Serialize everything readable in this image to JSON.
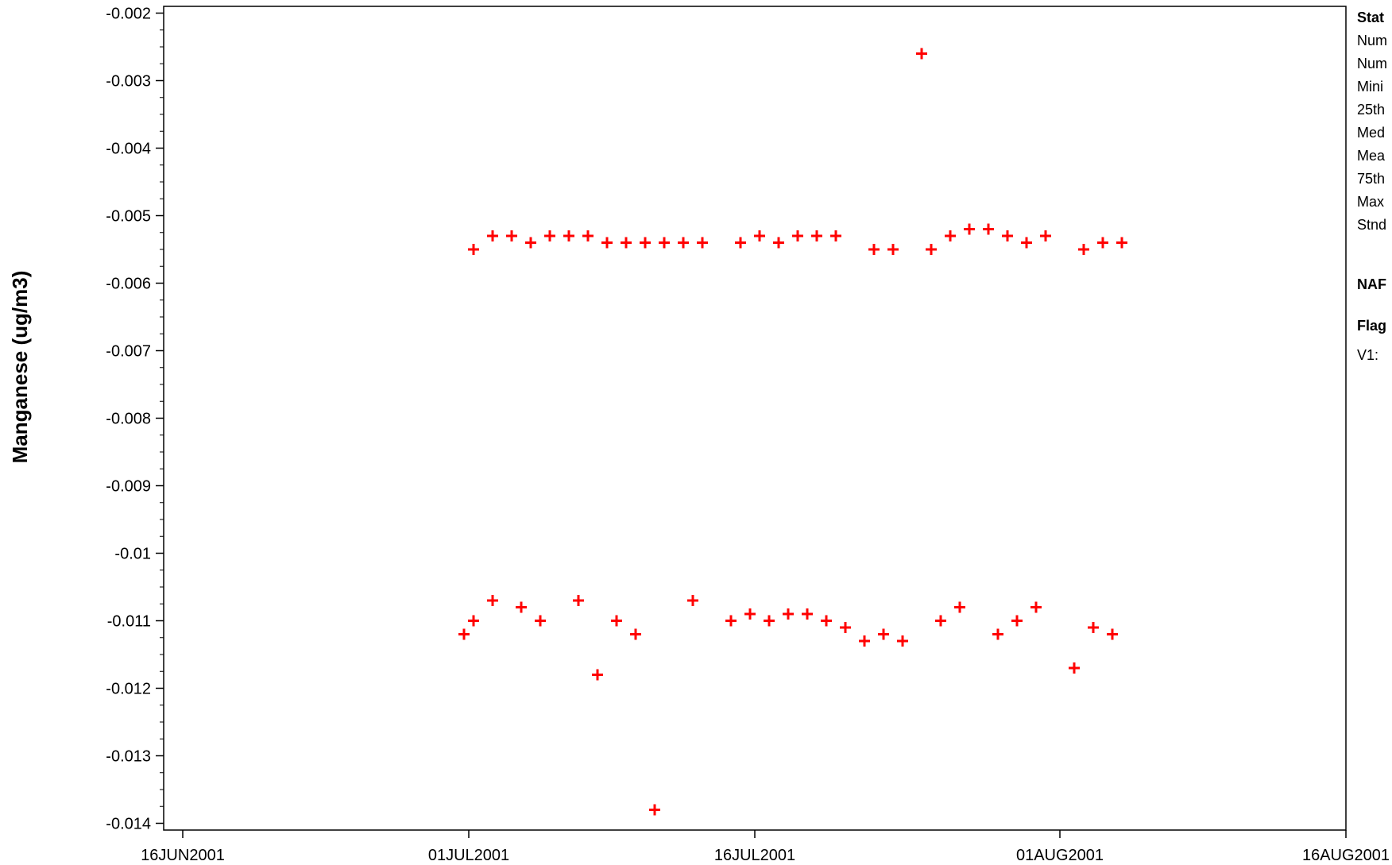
{
  "chart_data": {
    "type": "scatter",
    "xlabel": "",
    "ylabel": "Manganese (ug/m3)",
    "xlim": [
      "2001-06-15",
      "2001-08-16"
    ],
    "ylim": [
      -0.0141,
      -0.0019
    ],
    "x_ticks": [
      "16JUN2001",
      "01JUL2001",
      "16JUL2001",
      "01AUG2001",
      "16AUG2001"
    ],
    "y_ticks": [
      "-0.002",
      "-0.003",
      "-0.004",
      "-0.005",
      "-0.006",
      "-0.007",
      "-0.008",
      "-0.009",
      "-0.01",
      "-0.011",
      "-0.012",
      "-0.013",
      "-0.014"
    ],
    "marker": "plus",
    "marker_color": "#ff0000",
    "series": [
      {
        "points": [
          [
            "2001-06-30T18:00",
            -0.0112
          ],
          [
            "2001-07-01T06:00",
            -0.011
          ],
          [
            "2001-07-01T06:00",
            -0.0055
          ],
          [
            "2001-07-02T06:00",
            -0.0053
          ],
          [
            "2001-07-02T06:00",
            -0.0107
          ],
          [
            "2001-07-03T06:00",
            -0.0053
          ],
          [
            "2001-07-03T18:00",
            -0.0108
          ],
          [
            "2001-07-04T06:00",
            -0.0054
          ],
          [
            "2001-07-04T18:00",
            -0.011
          ],
          [
            "2001-07-05T06:00",
            -0.0053
          ],
          [
            "2001-07-06T06:00",
            -0.0053
          ],
          [
            "2001-07-06T18:00",
            -0.0107
          ],
          [
            "2001-07-07T06:00",
            -0.0053
          ],
          [
            "2001-07-07T18:00",
            -0.0118
          ],
          [
            "2001-07-08T06:00",
            -0.0054
          ],
          [
            "2001-07-08T18:00",
            -0.011
          ],
          [
            "2001-07-09T06:00",
            -0.0054
          ],
          [
            "2001-07-09T18:00",
            -0.0112
          ],
          [
            "2001-07-10T06:00",
            -0.0054
          ],
          [
            "2001-07-10T18:00",
            -0.0138
          ],
          [
            "2001-07-11T06:00",
            -0.0054
          ],
          [
            "2001-07-12T06:00",
            -0.0054
          ],
          [
            "2001-07-12T18:00",
            -0.0107
          ],
          [
            "2001-07-13T06:00",
            -0.0054
          ],
          [
            "2001-07-14T18:00",
            -0.011
          ],
          [
            "2001-07-15T06:00",
            -0.0054
          ],
          [
            "2001-07-15T18:00",
            -0.0109
          ],
          [
            "2001-07-16T06:00",
            -0.0053
          ],
          [
            "2001-07-16T18:00",
            -0.011
          ],
          [
            "2001-07-17T06:00",
            -0.0054
          ],
          [
            "2001-07-17T18:00",
            -0.0109
          ],
          [
            "2001-07-18T06:00",
            -0.0053
          ],
          [
            "2001-07-18T18:00",
            -0.0109
          ],
          [
            "2001-07-19T06:00",
            -0.0053
          ],
          [
            "2001-07-19T18:00",
            -0.011
          ],
          [
            "2001-07-20T06:00",
            -0.0053
          ],
          [
            "2001-07-20T18:00",
            -0.0111
          ],
          [
            "2001-07-21T18:00",
            -0.0113
          ],
          [
            "2001-07-22T06:00",
            -0.0055
          ],
          [
            "2001-07-22T18:00",
            -0.0112
          ],
          [
            "2001-07-23T06:00",
            -0.0055
          ],
          [
            "2001-07-23T18:00",
            -0.0113
          ],
          [
            "2001-07-24T18:00",
            -0.0026
          ],
          [
            "2001-07-25T06:00",
            -0.0055
          ],
          [
            "2001-07-25T18:00",
            -0.011
          ],
          [
            "2001-07-26T06:00",
            -0.0053
          ],
          [
            "2001-07-26T18:00",
            -0.0108
          ],
          [
            "2001-07-27T06:00",
            -0.0052
          ],
          [
            "2001-07-28T06:00",
            -0.0052
          ],
          [
            "2001-07-28T18:00",
            -0.0112
          ],
          [
            "2001-07-29T06:00",
            -0.0053
          ],
          [
            "2001-07-29T18:00",
            -0.011
          ],
          [
            "2001-07-30T06:00",
            -0.0054
          ],
          [
            "2001-07-30T18:00",
            -0.0108
          ],
          [
            "2001-07-31T06:00",
            -0.0053
          ],
          [
            "2001-08-01T18:00",
            -0.0117
          ],
          [
            "2001-08-02T06:00",
            -0.0055
          ],
          [
            "2001-08-02T18:00",
            -0.0111
          ],
          [
            "2001-08-03T06:00",
            -0.0054
          ],
          [
            "2001-08-03T18:00",
            -0.0112
          ],
          [
            "2001-08-04T06:00",
            -0.0054
          ]
        ]
      }
    ]
  },
  "side_panel": {
    "line1": "Stat",
    "line2": "Num",
    "line3": "Num",
    "line4": "Mini",
    "line5": "25th",
    "line6": "Med",
    "line7": "Mea",
    "line8": "75th",
    "line9": "Max",
    "line10": "Stnd",
    "line11": "NAF",
    "line12": "Flag",
    "line13": "V1:"
  }
}
